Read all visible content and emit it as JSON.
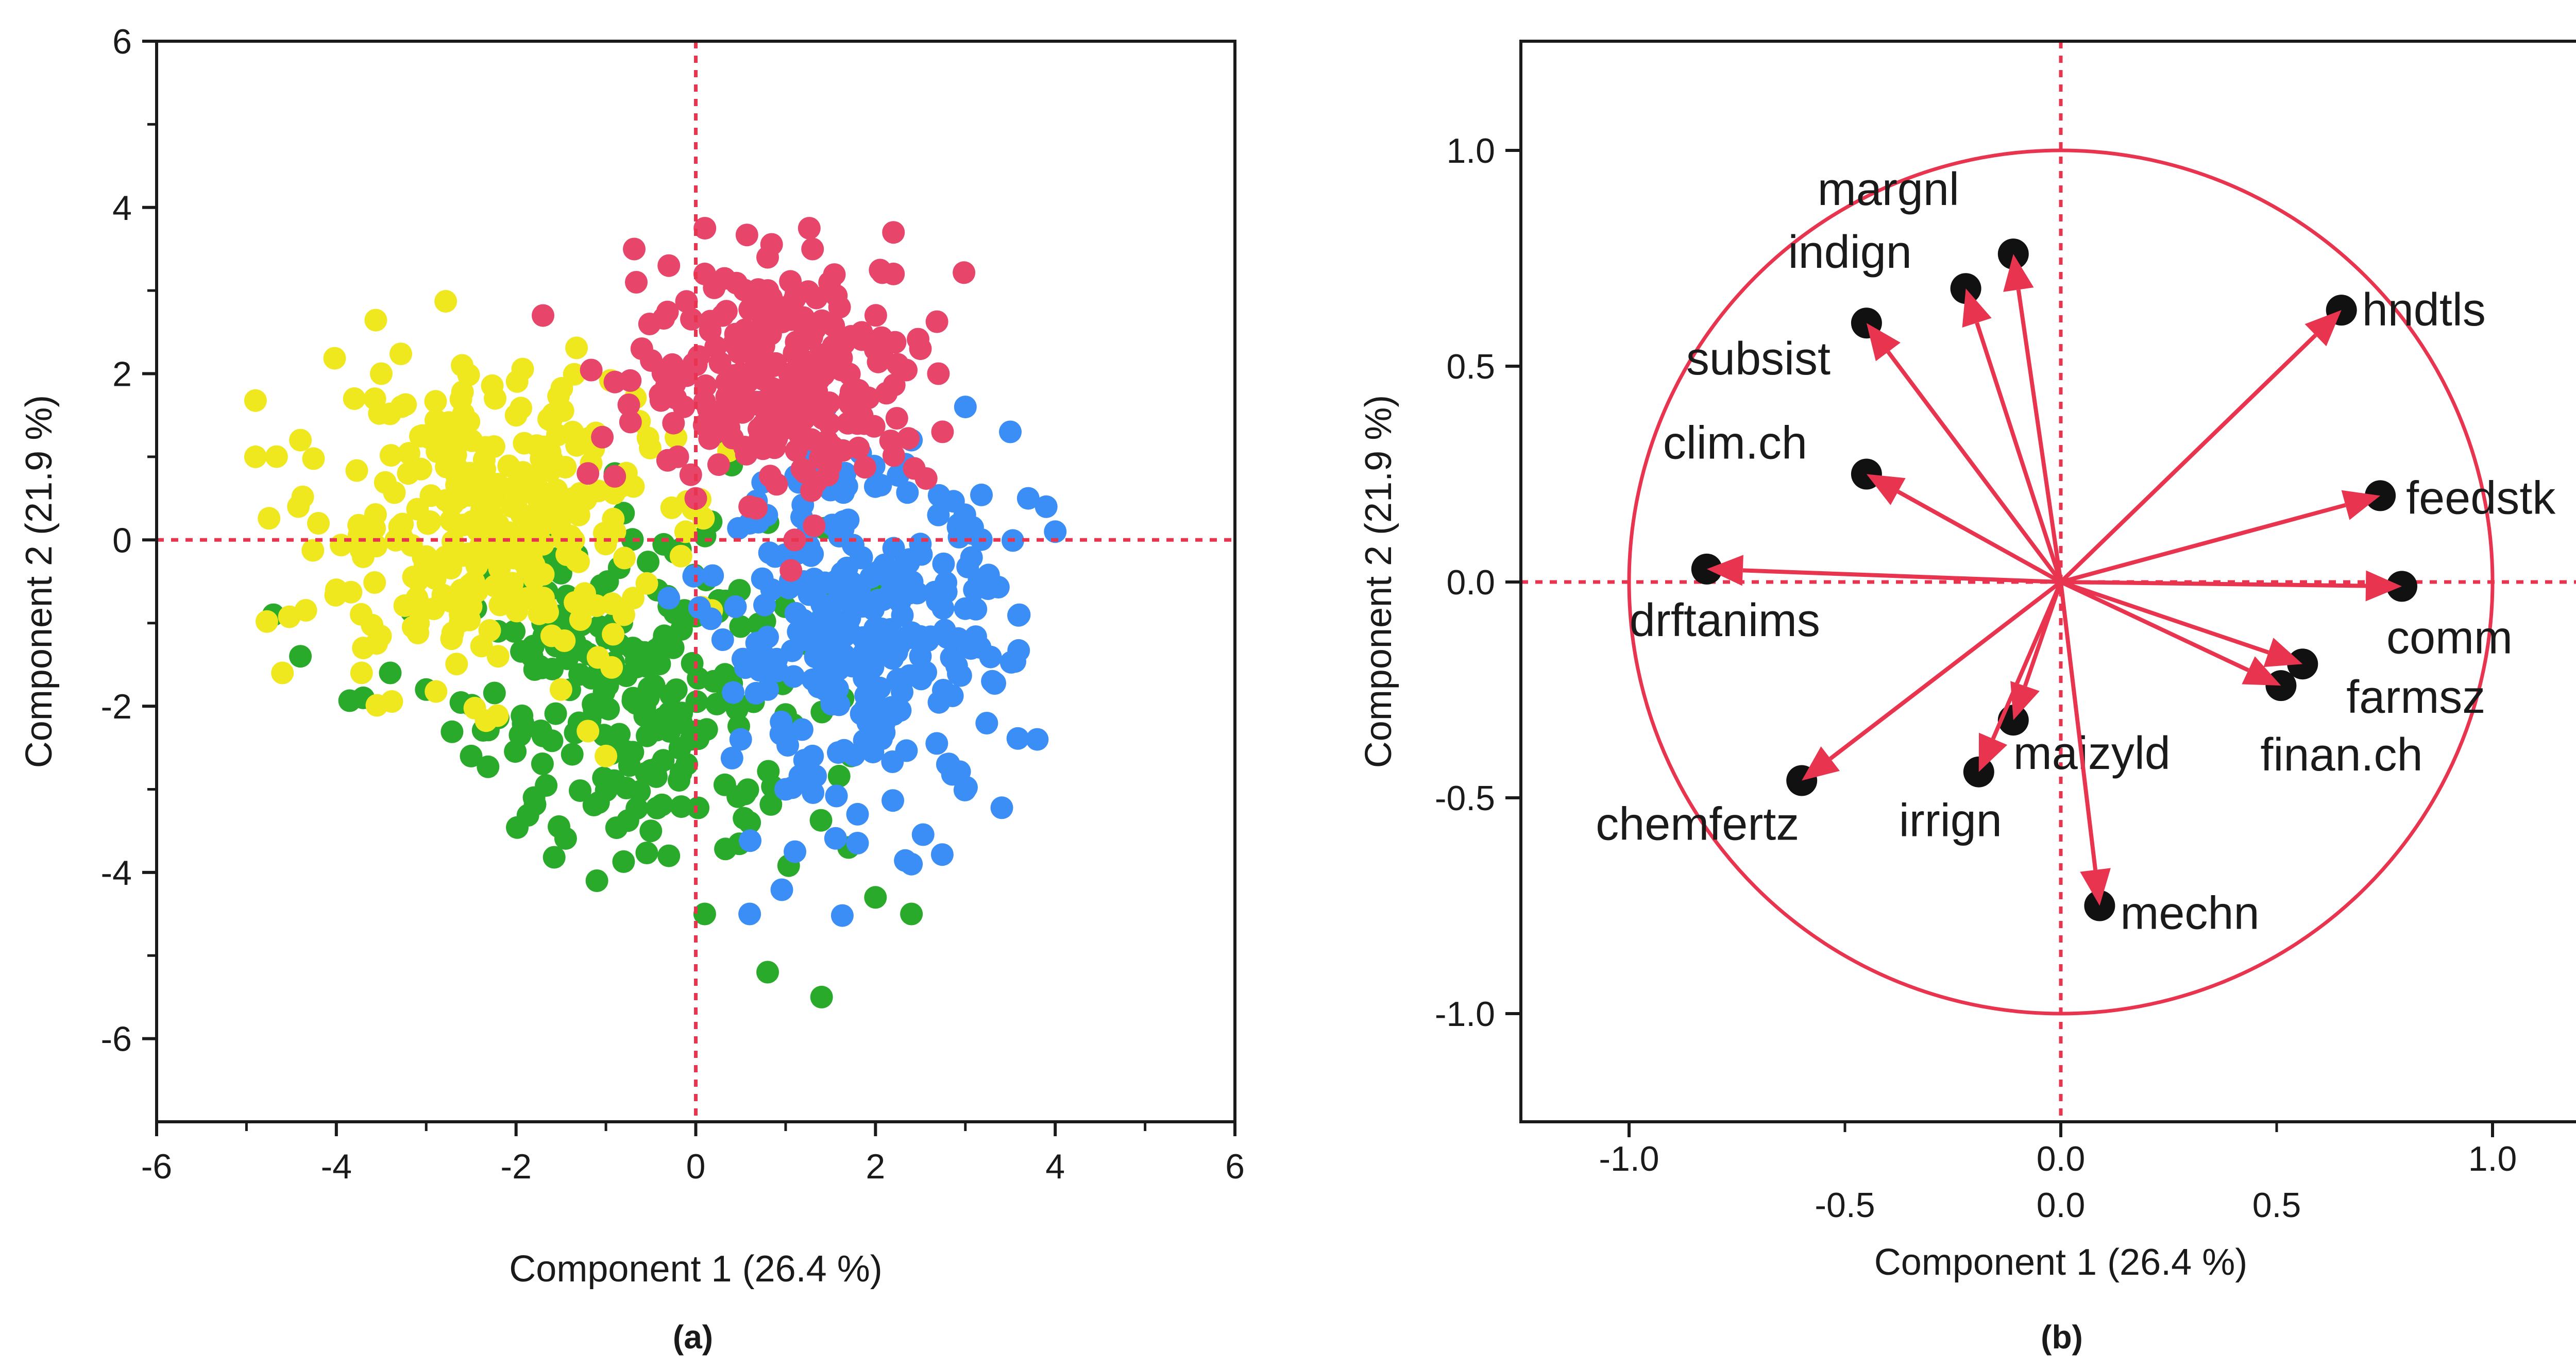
{
  "chart_data": [
    {
      "type": "scatter",
      "panel_label": "(a)",
      "xlabel": "Component 1  (26.4 %)",
      "ylabel": "Component 2  (21.9 %)",
      "xlim": [
        -6,
        6
      ],
      "ylim": [
        -7,
        6
      ],
      "xticks": [
        -6,
        -4,
        -2,
        0,
        2,
        4,
        6
      ],
      "yticks": [
        -6,
        -4,
        -2,
        0,
        2,
        4,
        6
      ],
      "reference_lines": {
        "x": 0,
        "y": 0,
        "style": "dotted",
        "color": "#e8344e"
      },
      "series": [
        {
          "color": "#f0e81f",
          "cluster_summary": {
            "center": [
              -2.4,
              0.2
            ],
            "spread": [
              0.95,
              0.9
            ],
            "count": 300
          },
          "points": [
            [
              -4.9,
              1.0
            ],
            [
              -4.6,
              -1.6
            ],
            [
              -4.4,
              1.2
            ],
            [
              -4.2,
              0.2
            ],
            [
              -4.0,
              -0.6
            ],
            [
              -3.8,
              1.7
            ],
            [
              -3.7,
              -1.3
            ],
            [
              -3.5,
              2.0
            ],
            [
              -3.2,
              0.8
            ],
            [
              -3.0,
              -0.2
            ],
            [
              -2.8,
              1.3
            ],
            [
              -2.6,
              2.1
            ],
            [
              -2.5,
              -0.8
            ],
            [
              -2.3,
              0.4
            ],
            [
              -2.2,
              -1.4
            ],
            [
              -2.0,
              1.5
            ],
            [
              -1.8,
              -0.3
            ],
            [
              -1.6,
              0.9
            ],
            [
              -1.5,
              -1.8
            ],
            [
              -1.3,
              0.3
            ],
            [
              -1.2,
              -2.3
            ],
            [
              -1.1,
              1.2
            ],
            [
              -0.9,
              0.1
            ],
            [
              -0.8,
              -0.9
            ],
            [
              -0.6,
              2.3
            ],
            [
              -1.0,
              -2.6
            ]
          ]
        },
        {
          "color": "#e8456a",
          "cluster_summary": {
            "center": [
              1.0,
              2.0
            ],
            "spread": [
              0.8,
              0.7
            ],
            "count": 250
          },
          "points": [
            [
              -1.7,
              2.7
            ],
            [
              -1.2,
              0.8
            ],
            [
              -0.9,
              1.9
            ],
            [
              -0.6,
              2.3
            ],
            [
              -0.3,
              3.3
            ],
            [
              -0.2,
              1.0
            ],
            [
              0.1,
              3.2
            ],
            [
              0.3,
              2.7
            ],
            [
              0.5,
              2.0
            ],
            [
              0.6,
              0.4
            ],
            [
              0.8,
              3.4
            ],
            [
              1.0,
              1.6
            ],
            [
              1.2,
              2.4
            ],
            [
              1.3,
              3.5
            ],
            [
              1.5,
              0.9
            ],
            [
              1.6,
              2.8
            ],
            [
              1.8,
              1.4
            ],
            [
              2.0,
              2.3
            ],
            [
              2.2,
              3.2
            ],
            [
              2.5,
              2.3
            ],
            [
              2.7,
              2.0
            ],
            [
              2.2,
              3.7
            ],
            [
              0.0,
              0.5
            ],
            [
              1.1,
              0.0
            ]
          ]
        },
        {
          "color": "#3b8ef5",
          "cluster_summary": {
            "center": [
              1.9,
              -1.2
            ],
            "spread": [
              0.8,
              1.0
            ],
            "count": 280
          },
          "points": [
            [
              -0.3,
              -0.7
            ],
            [
              0.3,
              -1.2
            ],
            [
              0.5,
              -2.4
            ],
            [
              0.6,
              0.2
            ],
            [
              0.8,
              -1.8
            ],
            [
              1.0,
              -3.0
            ],
            [
              1.2,
              -0.5
            ],
            [
              1.3,
              -2.6
            ],
            [
              1.5,
              0.6
            ],
            [
              1.6,
              -1.1
            ],
            [
              1.8,
              -3.3
            ],
            [
              1.9,
              0.9
            ],
            [
              2.1,
              -0.3
            ],
            [
              2.2,
              -2.1
            ],
            [
              2.4,
              1.2
            ],
            [
              2.5,
              -1.4
            ],
            [
              2.7,
              0.3
            ],
            [
              2.8,
              -2.7
            ],
            [
              3.0,
              1.6
            ],
            [
              3.1,
              -0.6
            ],
            [
              3.3,
              -1.7
            ],
            [
              3.5,
              1.3
            ],
            [
              3.7,
              0.5
            ],
            [
              3.9,
              0.4
            ],
            [
              4.0,
              0.1
            ],
            [
              3.8,
              -2.4
            ],
            [
              3.6,
              -0.9
            ],
            [
              2.4,
              -3.9
            ],
            [
              0.6,
              -4.5
            ]
          ]
        },
        {
          "color": "#2aaa2a",
          "cluster_summary": {
            "center": [
              -0.6,
              -1.8
            ],
            "spread": [
              1.0,
              1.0
            ],
            "count": 220
          },
          "points": [
            [
              -4.7,
              -0.9
            ],
            [
              -4.4,
              -1.4
            ],
            [
              -3.7,
              -1.9
            ],
            [
              -3.4,
              -1.6
            ],
            [
              -3.0,
              -1.8
            ],
            [
              -2.7,
              -0.2
            ],
            [
              -2.5,
              -2.6
            ],
            [
              -2.2,
              -1.1
            ],
            [
              -1.8,
              -3.1
            ],
            [
              -1.5,
              -0.4
            ],
            [
              -1.3,
              -2.2
            ],
            [
              -1.1,
              -4.1
            ],
            [
              -0.9,
              0.8
            ],
            [
              -0.7,
              -1.3
            ],
            [
              -0.5,
              -3.5
            ],
            [
              -0.3,
              -0.8
            ],
            [
              -0.1,
              -2.7
            ],
            [
              0.1,
              -4.5
            ],
            [
              0.2,
              -1.7
            ],
            [
              0.4,
              0.9
            ],
            [
              0.6,
              -3.4
            ],
            [
              0.8,
              -5.2
            ],
            [
              1.0,
              -2.1
            ],
            [
              1.2,
              1.2
            ],
            [
              1.4,
              -5.5
            ],
            [
              1.7,
              -3.7
            ],
            [
              2.0,
              -4.3
            ],
            [
              2.4,
              -4.5
            ],
            [
              -0.3,
              -3.8
            ]
          ]
        }
      ]
    },
    {
      "type": "scatter",
      "panel_label": "(b)",
      "xlabel": "Component 1  (26.4 %)",
      "ylabel": "Component 2  (21.9 %)",
      "xlim": [
        -1.25,
        1.25
      ],
      "ylim": [
        -1.25,
        1.25
      ],
      "xticks_main": [
        "-1.0",
        "0.0",
        "1.0"
      ],
      "xticks_offset": [
        "-0.5",
        "0.0",
        "0.5"
      ],
      "yticks": [
        "1.0",
        "0.5",
        "0.0",
        "-0.5",
        "-1.0"
      ],
      "circle_radius": 1.0,
      "color": "#e8344e",
      "variables": [
        {
          "name": "margnl",
          "x": -0.11,
          "y": 0.76
        },
        {
          "name": "indign",
          "x": -0.22,
          "y": 0.68
        },
        {
          "name": "subsist",
          "x": -0.45,
          "y": 0.6
        },
        {
          "name": "hndtls",
          "x": 0.65,
          "y": 0.63
        },
        {
          "name": "clim.ch",
          "x": -0.45,
          "y": 0.25
        },
        {
          "name": "feedstk",
          "x": 0.74,
          "y": 0.2
        },
        {
          "name": "drftanims",
          "x": -0.82,
          "y": 0.03
        },
        {
          "name": "comm",
          "x": 0.79,
          "y": -0.01
        },
        {
          "name": "farmsz",
          "x": 0.56,
          "y": -0.19
        },
        {
          "name": "finan.ch",
          "x": 0.51,
          "y": -0.24
        },
        {
          "name": "maizyld",
          "x": -0.11,
          "y": -0.32
        },
        {
          "name": "irrign",
          "x": -0.19,
          "y": -0.44
        },
        {
          "name": "chemfertz",
          "x": -0.6,
          "y": -0.46
        },
        {
          "name": "mechn",
          "x": 0.09,
          "y": -0.75
        }
      ]
    }
  ]
}
